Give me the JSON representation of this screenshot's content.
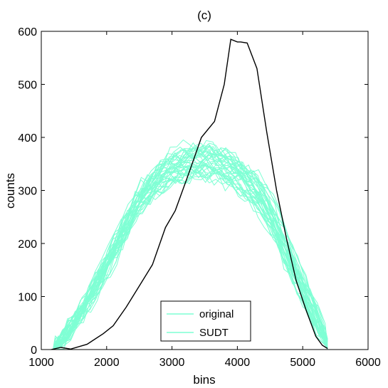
{
  "chart_data": {
    "type": "line",
    "title": "(c)",
    "xlabel": "bins",
    "ylabel": "counts",
    "xlim": [
      1000,
      6000
    ],
    "ylim": [
      0,
      600
    ],
    "xticks": [
      1000,
      2000,
      3000,
      4000,
      5000,
      6000
    ],
    "yticks": [
      0,
      100,
      200,
      300,
      400,
      500,
      600
    ],
    "grid": false,
    "legend": {
      "position": "bottom-center",
      "entries": [
        "original",
        "SUDT"
      ]
    },
    "colors": {
      "sudt": "#7fffd4",
      "original": "#000000"
    },
    "series": [
      {
        "name": "original",
        "x": [
          1150,
          1300,
          1450,
          1700,
          1950,
          2100,
          2300,
          2500,
          2700,
          2900,
          3050,
          3250,
          3450,
          3650,
          3800,
          3900,
          4000,
          4050,
          4150,
          4300,
          4450,
          4600,
          4750,
          4900,
          5050,
          5200,
          5300,
          5380
        ],
        "y": [
          0,
          4,
          1,
          10,
          30,
          45,
          80,
          120,
          160,
          230,
          262,
          330,
          400,
          430,
          500,
          585,
          580,
          580,
          578,
          530,
          410,
          300,
          210,
          130,
          75,
          25,
          8,
          2
        ]
      },
      {
        "name": "SUDT",
        "x": [
          1180,
          1400,
          1600,
          1800,
          2000,
          2200,
          2400,
          2600,
          2800,
          3000,
          3200,
          3400,
          3600,
          3800,
          4000,
          4200,
          4400,
          4600,
          4800,
          5000,
          5200,
          5400
        ],
        "y": [
          0,
          30,
          70,
          110,
          160,
          210,
          260,
          300,
          325,
          345,
          355,
          360,
          358,
          350,
          335,
          315,
          285,
          240,
          175,
          120,
          65,
          0
        ]
      }
    ]
  }
}
